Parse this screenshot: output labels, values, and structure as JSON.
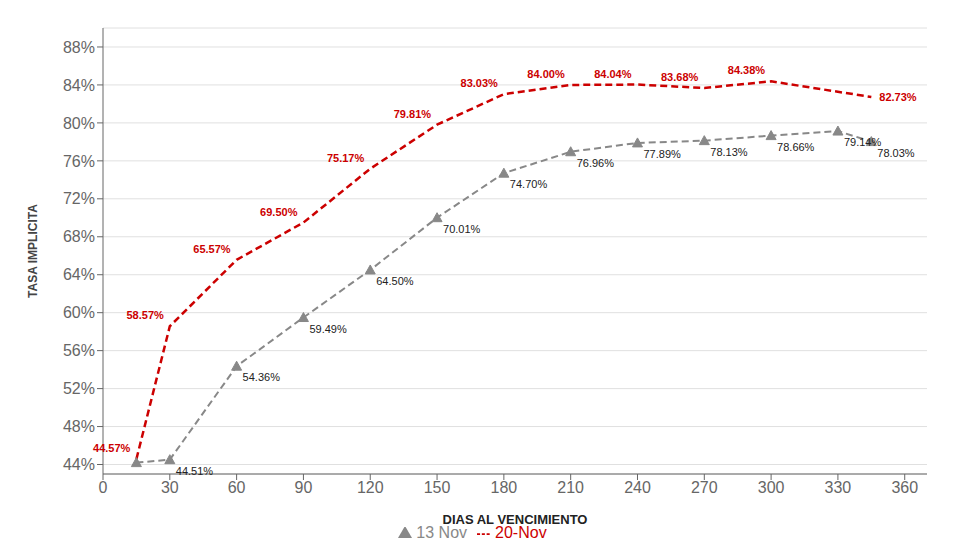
{
  "chart_data": {
    "type": "line",
    "xlabel": "DIAS AL VENCIMIENTO",
    "ylabel": "TASA IMPLICITA",
    "xlim": [
      0,
      370
    ],
    "ylim": [
      43,
      90
    ],
    "xticks": [
      0,
      30,
      60,
      90,
      120,
      150,
      180,
      210,
      240,
      270,
      300,
      330,
      360
    ],
    "yticks": [
      {
        "value": 44,
        "label": "44%"
      },
      {
        "value": 48,
        "label": "48%"
      },
      {
        "value": 52,
        "label": "52%"
      },
      {
        "value": 56,
        "label": "56%"
      },
      {
        "value": 60,
        "label": "60%"
      },
      {
        "value": 64,
        "label": "64%"
      },
      {
        "value": 68,
        "label": "68%"
      },
      {
        "value": 72,
        "label": "72%"
      },
      {
        "value": 76,
        "label": "76%"
      },
      {
        "value": 80,
        "label": "80%"
      },
      {
        "value": 84,
        "label": "84%"
      },
      {
        "value": 88,
        "label": "88%"
      }
    ],
    "grid": "y",
    "legend": "bottom",
    "series": [
      {
        "name": "20-Nov",
        "color": "#cc0000",
        "line_style": "dashed",
        "marker": "none",
        "x": [
          15,
          30,
          60,
          90,
          120,
          150,
          180,
          210,
          240,
          270,
          300,
          345
        ],
        "values": [
          44.57,
          58.57,
          65.57,
          69.5,
          75.17,
          79.81,
          83.03,
          84.0,
          84.04,
          83.68,
          84.38,
          82.73
        ],
        "value_labels": [
          "44.57%",
          "58.57%",
          "65.57%",
          "69.50%",
          "75.17%",
          "79.81%",
          "83.03%",
          "84.00%",
          "84.04%",
          "83.68%",
          "84.38%",
          "82.73%"
        ]
      },
      {
        "name": "13 Nov",
        "color": "#888888",
        "line_style": "dashed",
        "marker": "triangle",
        "x": [
          15,
          30,
          60,
          90,
          120,
          150,
          180,
          210,
          240,
          270,
          300,
          330,
          345
        ],
        "values": [
          44.2,
          44.51,
          54.36,
          59.49,
          64.5,
          70.01,
          74.7,
          76.96,
          77.89,
          78.13,
          78.66,
          79.14,
          78.03
        ],
        "value_labels": [
          null,
          "44.51%",
          "54.36%",
          "59.49%",
          "64.50%",
          "70.01%",
          "74.70%",
          "76.96%",
          "77.89%",
          "78.13%",
          "78.66%",
          "79.14%",
          "78.03%"
        ]
      }
    ]
  }
}
